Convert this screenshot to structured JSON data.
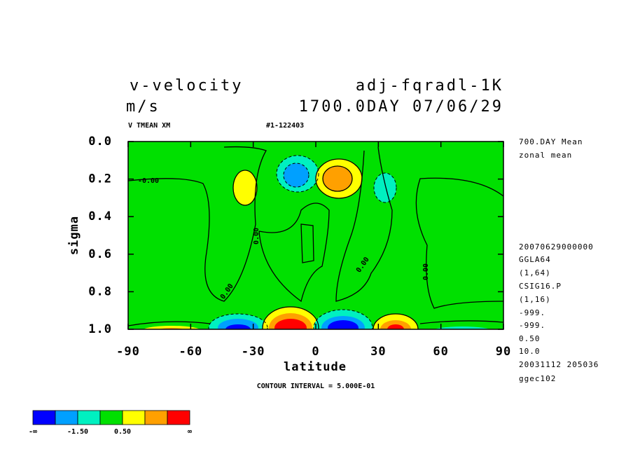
{
  "chart_data": {
    "type": "contour",
    "title_left": "v-velocity",
    "title_right": "adj-fqradl-1K",
    "subtitle_left": "m/s",
    "subtitle_right": "1700.0DAY 07/06/29",
    "variable_label": "V TMEAN XM",
    "run_label": "#1-122403",
    "x_label": "latitude",
    "y_label": "sigma",
    "footer": "CONTOUR INTERVAL = 5.000E-01",
    "xlim": [
      -90,
      90
    ],
    "xticks": [
      -90,
      -60,
      -30,
      0,
      30,
      60,
      90
    ],
    "ylim": [
      0,
      1
    ],
    "yticks": [
      {
        "value": 0,
        "label": "0.0"
      },
      {
        "value": 0.2,
        "label": "0.2"
      },
      {
        "value": 0.4,
        "label": "0.4"
      },
      {
        "value": 0.6,
        "label": "0.6"
      },
      {
        "value": 0.8,
        "label": "0.8"
      },
      {
        "value": 1,
        "label": "1.0"
      }
    ],
    "inverted_y": true,
    "info": [
      "700.DAY Mean",
      "zonal mean",
      "20070629000000",
      "GGLA64",
      "(1,64)",
      "CSIG16.P",
      "(1,16)",
      "-999.",
      "-999.",
      "0.50",
      "10.0",
      "20031112 205036",
      "ggec102"
    ],
    "contour_labels": [
      "-0.00",
      "0.00",
      "0.00",
      "0.00",
      "0.00"
    ],
    "colorbar": {
      "colors": [
        "#0000ff",
        "#00a0ff",
        "#00f0c0",
        "#00e000",
        "#ffff00",
        "#ffa000",
        "#ff0000"
      ],
      "labels": [
        "-∞",
        "-1.50",
        "0.50",
        "∞"
      ]
    }
  }
}
